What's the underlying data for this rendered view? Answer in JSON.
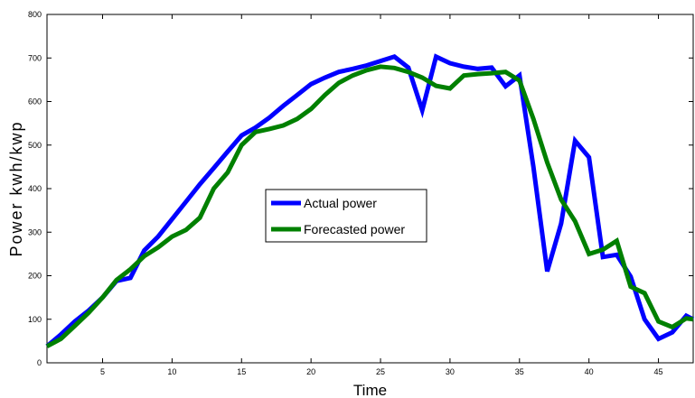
{
  "chart_data": {
    "type": "line",
    "title": "",
    "xlabel": "Time",
    "ylabel": "Power kwh/kwp",
    "xlim": [
      1,
      47.5
    ],
    "ylim": [
      0,
      800
    ],
    "xticks": [
      5,
      10,
      15,
      20,
      25,
      30,
      35,
      40,
      45
    ],
    "yticks": [
      0,
      100,
      200,
      300,
      400,
      500,
      600,
      700,
      800
    ],
    "grid": false,
    "legend_position": "center",
    "series": [
      {
        "name": "Actual power",
        "color": "#0000ff",
        "x": [
          1,
          2,
          3,
          4,
          5,
          6,
          7,
          8,
          9,
          10,
          11,
          12,
          13,
          14,
          15,
          16,
          17,
          18,
          19,
          20,
          21,
          22,
          23,
          24,
          25,
          26,
          27,
          28,
          29,
          30,
          31,
          32,
          33,
          34,
          35,
          36,
          37,
          38,
          39,
          40,
          41,
          42,
          43,
          44,
          45,
          46,
          47,
          47.5
        ],
        "values": [
          38,
          65,
          95,
          120,
          150,
          188,
          195,
          258,
          290,
          330,
          370,
          410,
          447,
          485,
          522,
          540,
          563,
          590,
          615,
          640,
          655,
          668,
          675,
          683,
          693,
          703,
          678,
          580,
          703,
          688,
          680,
          675,
          678,
          635,
          660,
          450,
          210,
          320,
          510,
          472,
          243,
          248,
          198,
          100,
          55,
          70,
          108,
          100
        ]
      },
      {
        "name": "Forecasted power",
        "color": "#008000",
        "x": [
          1,
          2,
          3,
          4,
          5,
          6,
          7,
          8,
          9,
          10,
          11,
          12,
          13,
          14,
          15,
          16,
          17,
          18,
          19,
          20,
          21,
          22,
          23,
          24,
          25,
          26,
          27,
          28,
          29,
          30,
          31,
          32,
          33,
          34,
          35,
          36,
          37,
          38,
          39,
          40,
          41,
          42,
          43,
          44,
          45,
          46,
          47,
          47.5
        ],
        "values": [
          38,
          55,
          85,
          115,
          150,
          190,
          215,
          245,
          265,
          290,
          305,
          333,
          400,
          437,
          500,
          530,
          537,
          545,
          560,
          583,
          615,
          643,
          660,
          672,
          680,
          677,
          668,
          655,
          636,
          630,
          660,
          663,
          665,
          668,
          648,
          560,
          460,
          375,
          325,
          250,
          260,
          280,
          175,
          160,
          95,
          82,
          102,
          100
        ]
      }
    ]
  }
}
